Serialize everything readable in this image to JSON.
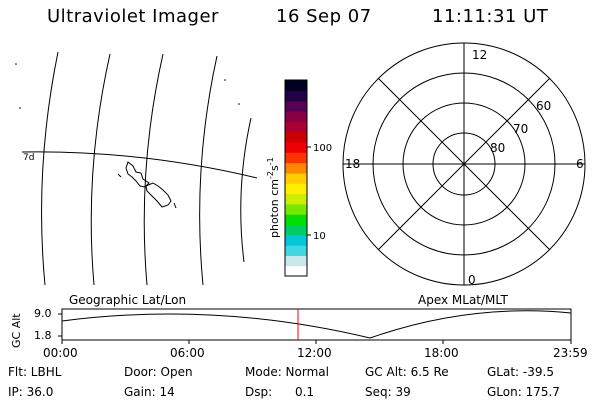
{
  "header": {
    "title": "Ultraviolet Imager",
    "date": "16 Sep 07",
    "time": "11:11:31 UT"
  },
  "map": {
    "caption": "Geographic Lat/Lon",
    "corner_mark": "7d"
  },
  "colorbar": {
    "unit_label": "photon cm",
    "unit_exp1": "-2",
    "unit_s": "s",
    "unit_exp2": "-1",
    "tick_100": "100",
    "tick_10": "10",
    "colors_bottom_to_top": [
      "#ffffff",
      "#c8e8ec",
      "#40d8e0",
      "#00c8d8",
      "#00cc66",
      "#00dd00",
      "#77e800",
      "#ccee00",
      "#ffee00",
      "#ffcc00",
      "#ff8800",
      "#ff3300",
      "#ee0000",
      "#cc0000",
      "#aa0033",
      "#880044",
      "#550055",
      "#220044",
      "#000022"
    ]
  },
  "polar": {
    "caption": "Apex MLat/MLT",
    "label_12": "12",
    "label_18": "18",
    "label_6": "6",
    "label_0": "0",
    "label_60": "60",
    "label_70": "70",
    "label_80": "80"
  },
  "altitude_plot": {
    "ylabel": "GC Alt",
    "ytick_top": "9.0",
    "ytick_bottom": "1.8",
    "xticks": [
      "00:00",
      "06:00",
      "12:00",
      "18:00",
      "23:59"
    ],
    "current_time_marker_color": "#ff0000"
  },
  "status": {
    "flt": "Flt: LBHL",
    "door": "Door: Open",
    "mode": "Mode: Normal",
    "gc_alt": "GC Alt: 6.5 Re",
    "glat": "GLat: -39.5",
    "ip": "IP: 36.0",
    "gain": "Gain: 14",
    "dsp": "Dsp:      0.1",
    "seq": "Seq: 39",
    "glon": "GLon: 175.7"
  }
}
